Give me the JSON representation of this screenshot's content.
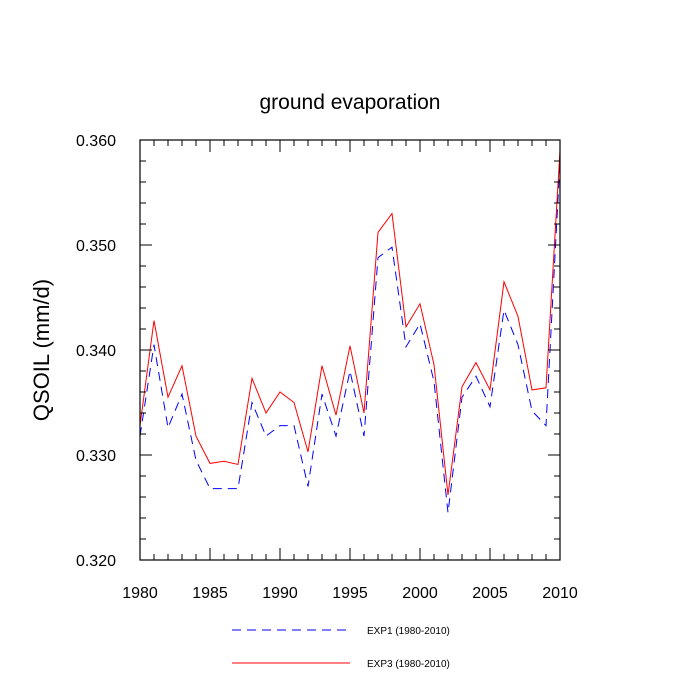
{
  "chart_data": {
    "type": "line",
    "title": "ground evaporation",
    "ylabel": "QSOIL  (mm/d)",
    "xlabel": "",
    "xlim": [
      1980,
      2010
    ],
    "ylim": [
      0.32,
      0.36
    ],
    "x_ticks": [
      1980,
      1985,
      1990,
      1995,
      2000,
      2005,
      2010
    ],
    "x_tick_labels": [
      "1980",
      "1985",
      "1990",
      "1995",
      "2000",
      "2005",
      "2010"
    ],
    "y_ticks": [
      0.32,
      0.33,
      0.34,
      0.35,
      0.36
    ],
    "y_tick_labels": [
      "0.320",
      "0.330",
      "0.340",
      "0.350",
      "0.360"
    ],
    "grid": false,
    "legend_position": "bottom",
    "x": [
      1980,
      1981,
      1982,
      1983,
      1984,
      1985,
      1986,
      1987,
      1988,
      1989,
      1990,
      1991,
      1992,
      1993,
      1994,
      1995,
      1996,
      1997,
      1998,
      1999,
      2000,
      2001,
      2002,
      2003,
      2004,
      2005,
      2006,
      2007,
      2008,
      2009,
      2010
    ],
    "series": [
      {
        "name": "EXP1 (1980-2010)",
        "color": "#0000ff",
        "style": "dashed",
        "values": [
          0.3318,
          0.3405,
          0.3326,
          0.3358,
          0.3295,
          0.3268,
          0.3268,
          0.3268,
          0.335,
          0.3318,
          0.3328,
          0.3328,
          0.327,
          0.3358,
          0.3318,
          0.338,
          0.3318,
          0.3488,
          0.3498,
          0.3403,
          0.3425,
          0.337,
          0.3245,
          0.3355,
          0.3375,
          0.3346,
          0.3438,
          0.3405,
          0.3342,
          0.3328,
          0.358
        ]
      },
      {
        "name": "EXP3 (1980-2010)",
        "color": "#ff0000",
        "style": "solid",
        "values": [
          0.3328,
          0.3428,
          0.3355,
          0.3385,
          0.3318,
          0.3292,
          0.3294,
          0.3291,
          0.3373,
          0.334,
          0.336,
          0.335,
          0.3303,
          0.3385,
          0.3338,
          0.3404,
          0.334,
          0.3512,
          0.353,
          0.3422,
          0.3444,
          0.3386,
          0.3262,
          0.3365,
          0.3388,
          0.3362,
          0.3465,
          0.3432,
          0.3362,
          0.3364,
          0.359
        ]
      }
    ]
  }
}
